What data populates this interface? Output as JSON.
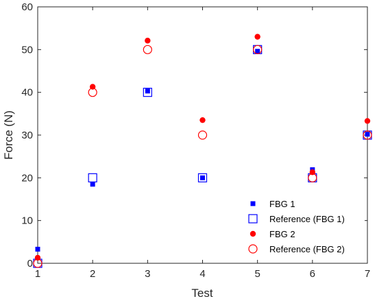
{
  "chart_data": {
    "type": "scatter",
    "xlabel": "Test",
    "ylabel": "Force (N)",
    "xlim": [
      1,
      7
    ],
    "ylim": [
      0,
      60
    ],
    "xticks": [
      1,
      2,
      3,
      4,
      5,
      6,
      7
    ],
    "yticks": [
      0,
      10,
      20,
      30,
      40,
      50,
      60
    ],
    "grid": false,
    "legend_position": "bottom-right",
    "x": [
      1,
      2,
      3,
      4,
      5,
      6,
      7
    ],
    "series": [
      {
        "name": "FBG 1",
        "marker": "filled-square",
        "color": "#0000ff",
        "values": [
          3.3,
          18.5,
          40.3,
          20.0,
          49.6,
          21.9,
          30.2
        ]
      },
      {
        "name": "Reference (FBG 1)",
        "marker": "open-square",
        "color": "#0000ff",
        "values": [
          0,
          20,
          40,
          20,
          50,
          20,
          30
        ]
      },
      {
        "name": "FBG 2",
        "marker": "filled-circle",
        "color": "#ff0000",
        "values": [
          1.3,
          41.3,
          52.1,
          33.5,
          53.0,
          21.3,
          33.3
        ]
      },
      {
        "name": "Reference (FBG 2)",
        "marker": "open-circle",
        "color": "#ff0000",
        "values": [
          0,
          40,
          50,
          30,
          50,
          20,
          30
        ]
      }
    ]
  }
}
